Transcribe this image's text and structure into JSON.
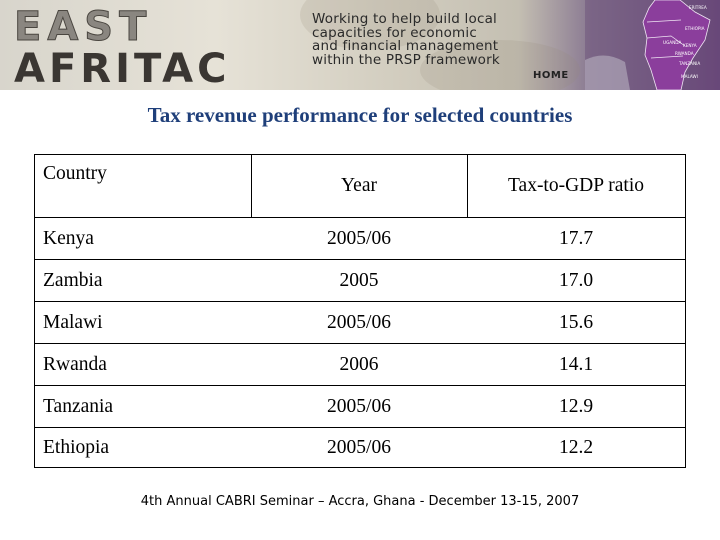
{
  "banner": {
    "logo_line1": "EAST",
    "logo_line2": "AFRITAC",
    "tagline": [
      "Working to help build local",
      "capacities for economic",
      "and financial management",
      "within the PRSP framework"
    ],
    "home_link": "HOME",
    "map_labels": [
      "ERITREA",
      "ETHIOPIA",
      "KENYA",
      "UGANDA",
      "RWANDA",
      "TANZANIA",
      "MALAWI"
    ],
    "accent_color": "#6e4d7e"
  },
  "title": "Tax revenue performance for selected countries",
  "table": {
    "headers": [
      "Country",
      "Year",
      "Tax-to-GDP ratio"
    ],
    "rows": [
      [
        "Kenya",
        "2005/06",
        "17.7"
      ],
      [
        "Zambia",
        "2005",
        "17.0"
      ],
      [
        "Malawi",
        "2005/06",
        "15.6"
      ],
      [
        "Rwanda",
        "2006",
        "14.1"
      ],
      [
        "Tanzania",
        "2005/06",
        "12.9"
      ],
      [
        "Ethiopia",
        "2005/06",
        "12.2"
      ]
    ]
  },
  "footer": "4th Annual CABRI Seminar – Accra, Ghana - December 13-15, 2007"
}
